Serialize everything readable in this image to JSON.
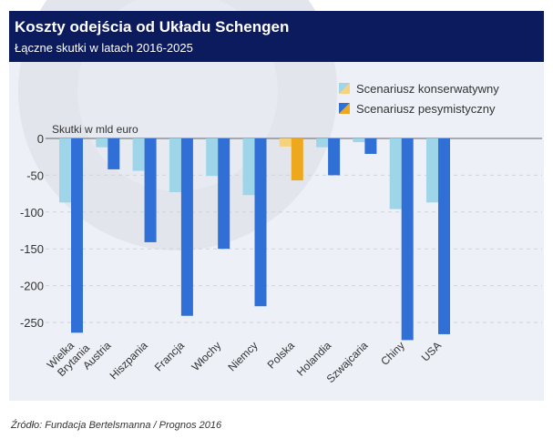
{
  "header": {
    "title": "Koszty odejścia od Układu Schengen",
    "subtitle": "Łączne skutki w latach 2016-2025"
  },
  "source": "Źródło: Fundacja Bertelsmanna / Prognos 2016",
  "chart_data": {
    "type": "bar",
    "title": "Koszty odejścia od Układu Schengen",
    "subtitle": "Łączne skutki w latach 2016-2025",
    "ylabel": "Skutki w mld euro",
    "xlabel": "",
    "ylim": [
      -275,
      0
    ],
    "yticks": [
      0,
      -50,
      -100,
      -150,
      -200,
      -250
    ],
    "grid": true,
    "legend_position": "top-right",
    "categories": [
      "Wielka Brytania",
      "Austria",
      "Hiszpania",
      "Francja",
      "Włochy",
      "Niemcy",
      "Polska",
      "Holandia",
      "Szwajcaria",
      "Chiny",
      "USA"
    ],
    "series": [
      {
        "name": "Scenariusz konserwatywny",
        "color": "#9fd5e8",
        "highlight_color": "#f6d27a",
        "values": [
          -87,
          -12,
          -44,
          -73,
          -51,
          -77,
          -11,
          -12,
          -5,
          -96,
          -87
        ]
      },
      {
        "name": "Scenariusz pesymistyczny",
        "color": "#2f6fd6",
        "highlight_color": "#eea81e",
        "values": [
          -264,
          -42,
          -141,
          -241,
          -150,
          -228,
          -57,
          -50,
          -21,
          -274,
          -266
        ]
      }
    ],
    "highlighted_category": "Polska"
  },
  "colors": {
    "header_bg": "#0b1b5e",
    "panel_bg": "#edf0f6"
  }
}
